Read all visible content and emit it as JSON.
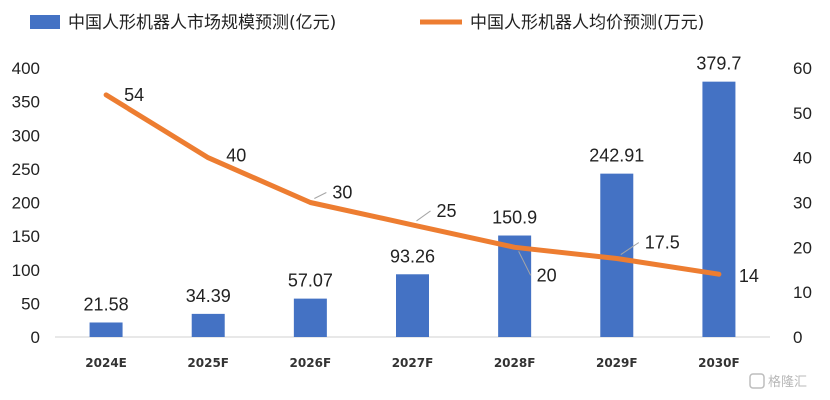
{
  "chart_data": {
    "type": "bar",
    "categories": [
      "2024E",
      "2025F",
      "2026F",
      "2027F",
      "2028F",
      "2029F",
      "2030F"
    ],
    "series": [
      {
        "name": "中国人形机器人市场规模预测(亿元)",
        "type": "bar",
        "axis": "left",
        "color": "#4472c4",
        "values": [
          21.58,
          34.39,
          57.07,
          93.26,
          150.9,
          242.91,
          379.7
        ],
        "labels": [
          "21.58",
          "34.39",
          "57.07",
          "93.26",
          "150.9",
          "242.91",
          "379.7"
        ]
      },
      {
        "name": "中国人形机器人均价预测(万元)",
        "type": "line",
        "axis": "right",
        "color": "#ed7d31",
        "values": [
          54,
          40,
          30,
          25,
          20,
          17.5,
          14
        ],
        "labels": [
          "54",
          "40",
          "30",
          "25",
          "20",
          "17.5",
          "14"
        ]
      }
    ],
    "y_left": {
      "range": [
        0,
        400
      ],
      "ticks": [
        "0",
        "50",
        "100",
        "150",
        "200",
        "250",
        "300",
        "350",
        "400"
      ]
    },
    "y_right": {
      "range": [
        0,
        60
      ],
      "ticks": [
        "0",
        "10",
        "20",
        "30",
        "40",
        "50",
        "60"
      ]
    },
    "legend_position": "top",
    "grid": false
  },
  "watermark": "格隆汇"
}
